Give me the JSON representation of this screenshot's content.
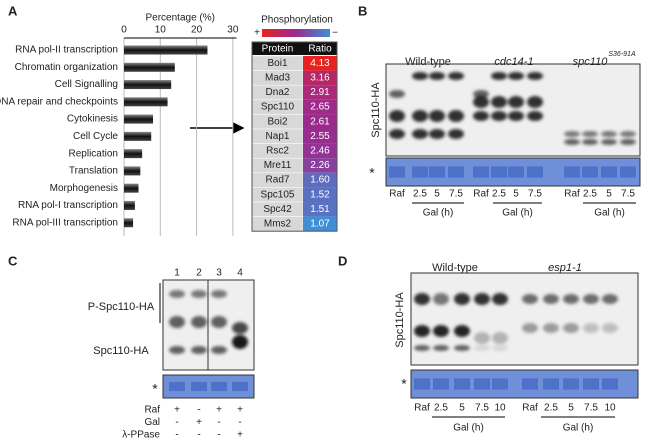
{
  "panel_labels": [
    "A",
    "B",
    "C",
    "D"
  ],
  "chart_data": {
    "type": "barh",
    "xlabel": "Percentage (%)",
    "categories": [
      "RNA pol-II transcription",
      "Chromatin organization",
      "Cell Signalling",
      "DNA repair and checkpoints",
      "Cytokinesis",
      "Cell Cycle",
      "Replication",
      "Translation",
      "Morphogenesis",
      "RNA pol-I transcription",
      "RNA pol-III transcription"
    ],
    "values": [
      23,
      14,
      13,
      12,
      8,
      7.5,
      5,
      4.5,
      4,
      3,
      2.5
    ],
    "color": "#222222",
    "xlim": [
      0,
      31
    ],
    "xticks": [
      0,
      10,
      20,
      30
    ],
    "grid": true
  },
  "table": {
    "title": "Phosphorylation",
    "scale_plus": "+",
    "scale_minus": "−",
    "header": [
      "Protein",
      "Ratio"
    ],
    "rows": [
      [
        "Boi1",
        "4.13"
      ],
      [
        "Mad3",
        "3.16"
      ],
      [
        "Dna2",
        "2.91"
      ],
      [
        "Spc110",
        "2.65"
      ],
      [
        "Boi2",
        "2.61"
      ],
      [
        "Nap1",
        "2.55"
      ],
      [
        "Rsc2",
        "2.46"
      ],
      [
        "Mre11",
        "2.26"
      ],
      [
        "Rad7",
        "1.60"
      ],
      [
        "Spc105",
        "1.52"
      ],
      [
        "Spc42",
        "1.51"
      ],
      [
        "Mms2",
        "1.07"
      ]
    ]
  },
  "panel_b": {
    "strains": [
      "Wild-type",
      "cdc14-1",
      "spc110"
    ],
    "strain_superscript": "S36-91A",
    "ylabel": "Spc110-HA",
    "loading_label": "*",
    "lanes": [
      [
        "Raf",
        "2.5",
        "5",
        "7.5"
      ],
      [
        "Raf",
        "2.5",
        "5",
        "7.5"
      ],
      [
        "Raf",
        "2.5",
        "5",
        "7.5"
      ]
    ],
    "time_labels": [
      "Gal (h)",
      "Gal (h)",
      "Gal (h)"
    ]
  },
  "panel_c": {
    "lane_numbers": [
      "1",
      "2",
      "3",
      "4"
    ],
    "bands": [
      "P-Spc110-HA",
      "Spc110-HA"
    ],
    "loading_label": "*",
    "treatments": [
      {
        "name": "Raf",
        "signs": [
          "+",
          "-",
          "+",
          "+"
        ]
      },
      {
        "name": "Gal",
        "signs": [
          "-",
          "+",
          "-",
          "-"
        ]
      },
      {
        "name": "λ-PPase",
        "signs": [
          "-",
          "-",
          "-",
          "+"
        ]
      }
    ]
  },
  "panel_d": {
    "strains": [
      "Wild-type",
      "esp1-1"
    ],
    "ylabel": "Spc110-HA",
    "loading_label": "*",
    "lanes": [
      [
        "Raf",
        "2.5",
        "5",
        "7.5",
        "10"
      ],
      [
        "Raf",
        "2.5",
        "5",
        "7.5",
        "10"
      ]
    ],
    "time_labels": [
      "Gal (h)",
      "Gal (h)"
    ]
  }
}
